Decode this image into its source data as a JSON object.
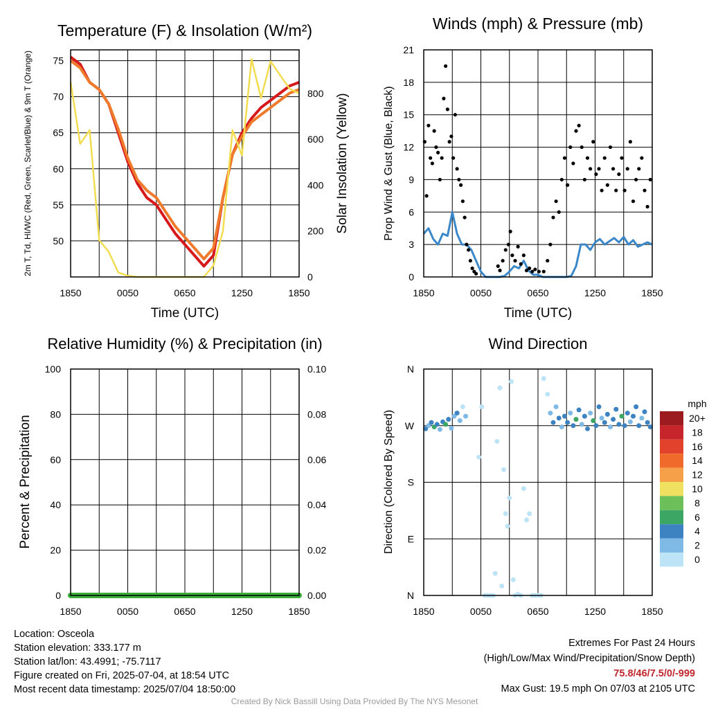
{
  "chart_data": [
    {
      "id": "temp",
      "type": "line",
      "title": "Temperature (F) & Insolation (W/m²)",
      "xlabel": "Time (UTC)",
      "ylabel_left": "2m T, Td, HI/WC (Red, Green, Scarlet/Blue) & 9m T (Orange)",
      "ylabel_right": "Solar Insolation (Yellow)",
      "x_ticks": [
        "1850",
        "0050",
        "0650",
        "1250",
        "1850"
      ],
      "ylim_left": [
        45,
        76.5
      ],
      "yticks_left": [
        50,
        55,
        60,
        65,
        70,
        75
      ],
      "ylim_right": [
        0,
        990
      ],
      "yticks_right": [
        0,
        200,
        400,
        600,
        800
      ],
      "x_hours": [
        0,
        1,
        2,
        3,
        4,
        5,
        6,
        7,
        8,
        9,
        10,
        11,
        12,
        13,
        14,
        15,
        16,
        17,
        18,
        19,
        20,
        21,
        22,
        23,
        24
      ],
      "series": [
        {
          "name": "2m T",
          "color": "#d7191c",
          "values": [
            75.5,
            74.5,
            72,
            71,
            69,
            65,
            61,
            58,
            56,
            55,
            53,
            51,
            49.5,
            48,
            46.5,
            48,
            56,
            62,
            65,
            67,
            68.5,
            69.5,
            70.5,
            71.5,
            72
          ]
        },
        {
          "name": "9m T",
          "color": "#f07a2c",
          "values": [
            75,
            74,
            72,
            71,
            69,
            65.5,
            61.5,
            58.5,
            57,
            56,
            54,
            52,
            50.5,
            49,
            47.5,
            49,
            56,
            62,
            64.5,
            66.5,
            67.5,
            68.5,
            69.5,
            70.5,
            71
          ]
        },
        {
          "name": "Solar Insolation",
          "color": "#f2dc50",
          "values": [
            850,
            580,
            640,
            160,
            110,
            20,
            5,
            0,
            0,
            0,
            0,
            0,
            0,
            0,
            0,
            50,
            200,
            640,
            530,
            950,
            780,
            940,
            880,
            820,
            800
          ]
        }
      ]
    },
    {
      "id": "wind",
      "type": "scatter",
      "title": "Winds (mph) & Pressure (mb)",
      "xlabel": "Time (UTC)",
      "ylabel": "Prop Wind & Gust (Blue, Black)",
      "x_ticks": [
        "1850",
        "0050",
        "0650",
        "1250",
        "1850"
      ],
      "ylim": [
        0,
        21
      ],
      "yticks": [
        0,
        3,
        6,
        9,
        12,
        15,
        18,
        21
      ],
      "series": [
        {
          "name": "Prop Wind",
          "color": "#3a87c9",
          "x_hours": [
            0,
            0.5,
            1,
            1.5,
            2,
            2.5,
            3,
            3.5,
            4,
            4.5,
            5,
            5.5,
            6,
            6.5,
            7,
            7.5,
            8,
            8.5,
            9,
            9.5,
            10,
            10.5,
            11,
            11.5,
            12,
            12.5,
            13,
            13.5,
            14,
            14.5,
            15,
            15.5,
            16,
            16.5,
            17,
            17.5,
            18,
            18.5,
            19,
            19.5,
            20,
            20.5,
            21,
            21.5,
            22,
            22.5,
            23,
            23.5,
            24
          ],
          "values": [
            4,
            4.5,
            3.5,
            3,
            4,
            3.8,
            6,
            4,
            3,
            3,
            2.5,
            1.5,
            0.5,
            0,
            0,
            0,
            0,
            0.1,
            0.5,
            1,
            0.8,
            1.5,
            0.6,
            0.2,
            0.2,
            0,
            0,
            0,
            0,
            0,
            0,
            0.1,
            1,
            3,
            3,
            2.5,
            3.2,
            3.5,
            3,
            3.3,
            3.6,
            3.2,
            3.7,
            3,
            3.4,
            2.8,
            3,
            3.2,
            3
          ]
        },
        {
          "name": "Gust",
          "color": "#000000",
          "points": [
            [
              0.1,
              12.5
            ],
            [
              0.3,
              7.5
            ],
            [
              0.5,
              14
            ],
            [
              0.7,
              11
            ],
            [
              0.9,
              10.5
            ],
            [
              1.1,
              13.5
            ],
            [
              1.3,
              12
            ],
            [
              1.5,
              11.5
            ],
            [
              1.7,
              9
            ],
            [
              1.9,
              11
            ],
            [
              2.1,
              16.5
            ],
            [
              2.3,
              19.5
            ],
            [
              2.5,
              15.5
            ],
            [
              2.7,
              12.5
            ],
            [
              2.9,
              13
            ],
            [
              3.1,
              11
            ],
            [
              3.3,
              15
            ],
            [
              3.5,
              10
            ],
            [
              3.7,
              9
            ],
            [
              3.9,
              8.5
            ],
            [
              4.1,
              7
            ],
            [
              4.3,
              5.5
            ],
            [
              4.5,
              3
            ],
            [
              4.7,
              2.5
            ],
            [
              4.9,
              1.5
            ],
            [
              5.1,
              0.8
            ],
            [
              5.3,
              0.5
            ],
            [
              5.5,
              0.3
            ],
            [
              7.8,
              1
            ],
            [
              8,
              0.6
            ],
            [
              8.3,
              1.5
            ],
            [
              8.6,
              2.5
            ],
            [
              8.9,
              3
            ],
            [
              9.1,
              4.2
            ],
            [
              9.3,
              2
            ],
            [
              9.6,
              1.5
            ],
            [
              9.9,
              2.8
            ],
            [
              10.2,
              1.2
            ],
            [
              10.5,
              2
            ],
            [
              10.8,
              0.6
            ],
            [
              11.1,
              0.8
            ],
            [
              11.4,
              0.5
            ],
            [
              11.7,
              0.7
            ],
            [
              12.1,
              0.5
            ],
            [
              12.6,
              0.5
            ],
            [
              13,
              1.5
            ],
            [
              13.3,
              3
            ],
            [
              13.6,
              5.5
            ],
            [
              13.9,
              7
            ],
            [
              14.2,
              6
            ],
            [
              14.5,
              9
            ],
            [
              14.8,
              11
            ],
            [
              15.1,
              8.5
            ],
            [
              15.4,
              12
            ],
            [
              15.7,
              10.5
            ],
            [
              16,
              13.5
            ],
            [
              16.3,
              14
            ],
            [
              16.6,
              12
            ],
            [
              16.9,
              9
            ],
            [
              17.2,
              11
            ],
            [
              17.5,
              10
            ],
            [
              17.8,
              12.5
            ],
            [
              18.1,
              9.5
            ],
            [
              18.4,
              10
            ],
            [
              18.7,
              8
            ],
            [
              19,
              11
            ],
            [
              19.3,
              8.5
            ],
            [
              19.6,
              12
            ],
            [
              19.9,
              10
            ],
            [
              20.2,
              8
            ],
            [
              20.5,
              9.5
            ],
            [
              20.8,
              11
            ],
            [
              21.1,
              8
            ],
            [
              21.4,
              10
            ],
            [
              21.7,
              12.5
            ],
            [
              22,
              7
            ],
            [
              22.3,
              9
            ],
            [
              22.6,
              10
            ],
            [
              22.9,
              11
            ],
            [
              23.2,
              8
            ],
            [
              23.5,
              6.5
            ],
            [
              23.8,
              9
            ]
          ]
        }
      ]
    },
    {
      "id": "rh",
      "type": "line",
      "title": "Relative Humidity (%) & Precipitation (in)",
      "ylabel": "Percent & Precipitation",
      "x_ticks": [
        "1850",
        "0050",
        "0650",
        "1250",
        "1850"
      ],
      "ylim_left": [
        0,
        100
      ],
      "yticks_left": [
        "0",
        "20",
        "40",
        "60",
        "80",
        "100"
      ],
      "ylim_right": [
        0,
        0.1
      ],
      "yticks_right": [
        "0.00",
        "0.02",
        "0.04",
        "0.06",
        "0.08",
        "0.10"
      ],
      "series": [
        {
          "name": "Precipitation",
          "color": "#3cae3c",
          "values": [
            0,
            0
          ]
        }
      ]
    },
    {
      "id": "wdir",
      "type": "scatter",
      "title": "Wind Direction",
      "ylabel": "Direction (Colored By Speed)",
      "x_ticks": [
        "1850",
        "0050",
        "0650",
        "1250",
        "1850"
      ],
      "y_ticks": [
        "N",
        "E",
        "S",
        "W",
        "N"
      ],
      "ylim": [
        0,
        360
      ],
      "legend_title": "mph",
      "legend_labels": [
        "20+",
        "18",
        "16",
        "14",
        "12",
        "10",
        "8",
        "6",
        "4",
        "2",
        "0"
      ],
      "legend_colors": [
        "#9b1b1e",
        "#c6262b",
        "#e2422c",
        "#f06a2c",
        "#f7a04a",
        "#f0e060",
        "#6dbf5a",
        "#3ca764",
        "#3d83c2",
        "#7fb9e6",
        "#bde3f7"
      ],
      "points": [
        [
          0.2,
          265,
          4
        ],
        [
          0.5,
          270,
          2
        ],
        [
          0.8,
          275,
          4
        ],
        [
          1.1,
          268,
          6
        ],
        [
          1.4,
          272,
          4
        ],
        [
          1.7,
          264,
          2
        ],
        [
          2,
          276,
          4
        ],
        [
          2.3,
          272,
          6
        ],
        [
          2.6,
          280,
          4
        ],
        [
          2.9,
          266,
          2
        ],
        [
          3.2,
          285,
          2
        ],
        [
          3.5,
          290,
          4
        ],
        [
          3.8,
          278,
          2
        ],
        [
          4.1,
          300,
          0
        ],
        [
          4.4,
          285,
          2
        ],
        [
          5.8,
          220,
          0
        ],
        [
          6.1,
          300,
          0
        ],
        [
          6.4,
          0,
          0
        ],
        [
          6.7,
          0,
          0
        ],
        [
          7,
          0,
          0
        ],
        [
          7.3,
          0,
          0
        ],
        [
          7.5,
          35,
          0
        ],
        [
          7.7,
          245,
          0
        ],
        [
          8,
          330,
          0
        ],
        [
          8.2,
          15,
          0
        ],
        [
          8.4,
          200,
          0
        ],
        [
          8.6,
          130,
          0
        ],
        [
          8.8,
          110,
          0
        ],
        [
          9,
          155,
          0
        ],
        [
          9.2,
          340,
          0
        ],
        [
          9.4,
          25,
          0
        ],
        [
          9.6,
          0,
          0
        ],
        [
          9.9,
          2,
          0
        ],
        [
          10.2,
          0,
          0
        ],
        [
          10.5,
          170,
          0
        ],
        [
          10.8,
          120,
          0
        ],
        [
          11.1,
          130,
          0
        ],
        [
          11.4,
          0,
          0
        ],
        [
          11.7,
          0,
          0
        ],
        [
          12,
          0,
          0
        ],
        [
          12.3,
          0,
          0
        ],
        [
          12.6,
          345,
          0
        ],
        [
          13,
          320,
          0
        ],
        [
          13.3,
          290,
          2
        ],
        [
          13.6,
          275,
          4
        ],
        [
          13.9,
          300,
          2
        ],
        [
          14.2,
          282,
          4
        ],
        [
          14.5,
          268,
          2
        ],
        [
          14.8,
          285,
          4
        ],
        [
          15.1,
          275,
          4
        ],
        [
          15.4,
          290,
          2
        ],
        [
          15.7,
          270,
          4
        ],
        [
          16,
          280,
          6
        ],
        [
          16.3,
          295,
          4
        ],
        [
          16.6,
          272,
          2
        ],
        [
          16.9,
          285,
          4
        ],
        [
          17.2,
          265,
          4
        ],
        [
          17.5,
          290,
          2
        ],
        [
          17.8,
          278,
          6
        ],
        [
          18.1,
          270,
          4
        ],
        [
          18.4,
          300,
          4
        ],
        [
          18.7,
          282,
          2
        ],
        [
          19,
          275,
          4
        ],
        [
          19.3,
          288,
          4
        ],
        [
          19.6,
          268,
          2
        ],
        [
          19.9,
          280,
          4
        ],
        [
          20.2,
          296,
          4
        ],
        [
          20.5,
          272,
          4
        ],
        [
          20.8,
          285,
          6
        ],
        [
          21.1,
          270,
          4
        ],
        [
          21.4,
          290,
          4
        ],
        [
          21.7,
          276,
          2
        ],
        [
          22,
          285,
          4
        ],
        [
          22.3,
          300,
          4
        ],
        [
          22.6,
          270,
          4
        ],
        [
          22.9,
          282,
          2
        ],
        [
          23.2,
          292,
          4
        ],
        [
          23.5,
          275,
          4
        ],
        [
          23.8,
          268,
          4
        ]
      ]
    }
  ],
  "footer": {
    "location": "Location: Osceola",
    "elevation": "Station elevation: 333.177 m",
    "latlon": "Station lat/lon: 43.4991; -75.7117",
    "created": "Figure created on Fri, 2025-07-04, at 18:54 UTC",
    "recent": "Most recent data timestamp: 2025/07/04 18:50:00",
    "extremes_title": "Extremes For Past 24 Hours",
    "extremes_sub": "(High/Low/Max Wind/Precipitation/Snow Depth)",
    "extremes_values": "75.8/46/7.5/0/-999",
    "max_gust": "Max Gust: 19.5 mph On 07/03 at 2105 UTC",
    "credit": "Created By Nick Bassill Using Data Provided By The NYS Mesonet"
  }
}
